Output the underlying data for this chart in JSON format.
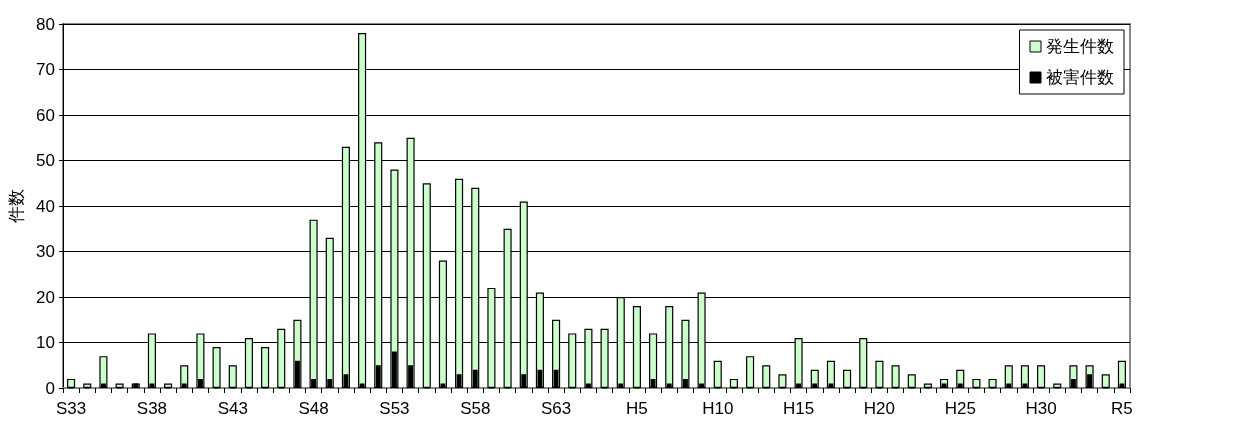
{
  "chart_data": {
    "type": "bar",
    "ylabel": "件数",
    "categories": [
      "S33",
      null,
      null,
      null,
      null,
      "S38",
      null,
      null,
      null,
      null,
      "S43",
      null,
      null,
      null,
      null,
      "S48",
      null,
      null,
      null,
      null,
      "S53",
      null,
      null,
      null,
      null,
      "S58",
      null,
      null,
      null,
      null,
      "S63",
      null,
      null,
      null,
      null,
      "H5",
      null,
      null,
      null,
      null,
      "H10",
      null,
      null,
      null,
      null,
      "H15",
      null,
      null,
      null,
      null,
      "H20",
      null,
      null,
      null,
      null,
      "H25",
      null,
      null,
      null,
      null,
      "H30",
      null,
      null,
      null,
      null,
      "R5"
    ],
    "series": [
      {
        "name": "発生件数",
        "color": "#ccffcc",
        "values": [
          2,
          1,
          7,
          1,
          1,
          12,
          1,
          5,
          12,
          9,
          5,
          11,
          9,
          13,
          15,
          37,
          33,
          53,
          78,
          54,
          48,
          55,
          45,
          28,
          46,
          44,
          22,
          35,
          41,
          21,
          15,
          12,
          13,
          13,
          20,
          18,
          12,
          18,
          15,
          21,
          6,
          2,
          7,
          5,
          3,
          11,
          4,
          6,
          4,
          11,
          6,
          5,
          3,
          1,
          2,
          4,
          2,
          2,
          5,
          5,
          5,
          1,
          5,
          5,
          3,
          6
        ]
      },
      {
        "name": "被害件数",
        "color": "#000000",
        "values": [
          0,
          0,
          1,
          0,
          1,
          1,
          0,
          1,
          2,
          0,
          0,
          0,
          0,
          0,
          6,
          2,
          2,
          3,
          1,
          5,
          8,
          5,
          0,
          1,
          3,
          4,
          0,
          0,
          3,
          4,
          4,
          0,
          1,
          0,
          1,
          0,
          2,
          1,
          2,
          1,
          0,
          0,
          0,
          0,
          0,
          1,
          1,
          1,
          0,
          0,
          0,
          0,
          0,
          0,
          1,
          1,
          0,
          0,
          1,
          1,
          0,
          0,
          2,
          3,
          0,
          1
        ]
      }
    ],
    "ylim": [
      0,
      80
    ],
    "yticks": [
      0,
      10,
      20,
      30,
      40,
      50,
      60,
      70,
      80
    ],
    "grid": "y",
    "legend": "top right"
  }
}
